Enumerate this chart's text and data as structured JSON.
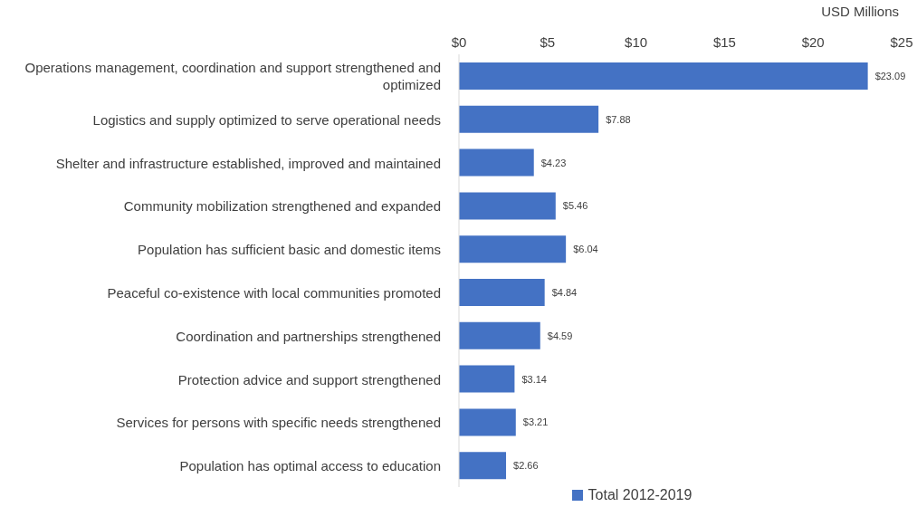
{
  "chart_data": {
    "type": "bar",
    "orientation": "horizontal",
    "xlabel": "USD Millions",
    "categories": [
      "Operations management, coordination and support strengthened and optimized",
      "Logistics and supply optimized to serve operational needs",
      "Shelter and infrastructure established, improved and maintained",
      "Community mobilization strengthened and expanded",
      "Population has sufficient basic and domestic items",
      "Peaceful co-existence with local communities promoted",
      "Coordination and partnerships strengthened",
      "Protection advice and support strengthened",
      "Services for persons with specific needs strengthened",
      "Population has optimal access to education"
    ],
    "series": [
      {
        "name": "Total 2012-2019",
        "color": "#4472c4",
        "values": [
          23.09,
          7.88,
          4.23,
          5.46,
          6.04,
          4.84,
          4.59,
          3.14,
          3.21,
          2.66
        ],
        "value_labels": [
          "$23.09",
          "$7.88",
          "$4.23",
          "$5.46",
          "$6.04",
          "$4.84",
          "$4.59",
          "$3.14",
          "$3.21",
          "$2.66"
        ]
      }
    ],
    "xlim": [
      0,
      25
    ],
    "xticks": [
      {
        "value": 0,
        "label": "$0"
      },
      {
        "value": 5,
        "label": "$5"
      },
      {
        "value": 10,
        "label": "$10"
      },
      {
        "value": 15,
        "label": "$15"
      },
      {
        "value": 20,
        "label": "$20"
      },
      {
        "value": 25,
        "label": "$25"
      }
    ],
    "grid": false,
    "legend": "bottom"
  }
}
